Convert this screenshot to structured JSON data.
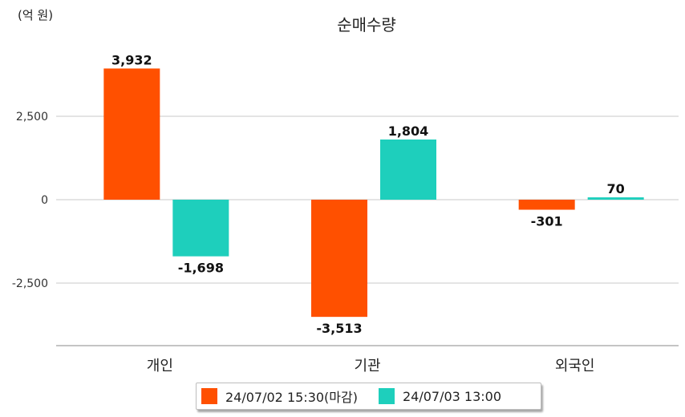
{
  "chart_data": {
    "type": "bar",
    "title": "순매수량",
    "unit_label": "(억 원)",
    "categories": [
      "개인",
      "기관",
      "외국인"
    ],
    "series": [
      {
        "name": "24/07/02 15:30(마감)",
        "color": "#ff5000",
        "values": [
          3932,
          -3513,
          -301
        ],
        "labels": [
          "3,932",
          "-3,513",
          "-301"
        ]
      },
      {
        "name": "24/07/03 13:00",
        "color": "#1ecfbc",
        "values": [
          -1698,
          1804,
          70
        ],
        "labels": [
          "-1,698",
          "1,804",
          "70"
        ]
      }
    ],
    "y_ticks": [
      2500,
      0,
      -2500
    ],
    "y_tick_labels": [
      "2,500",
      "0",
      "-2,500"
    ],
    "ylim": [
      -4400,
      4400
    ],
    "grid": true,
    "legend_position": "bottom"
  }
}
